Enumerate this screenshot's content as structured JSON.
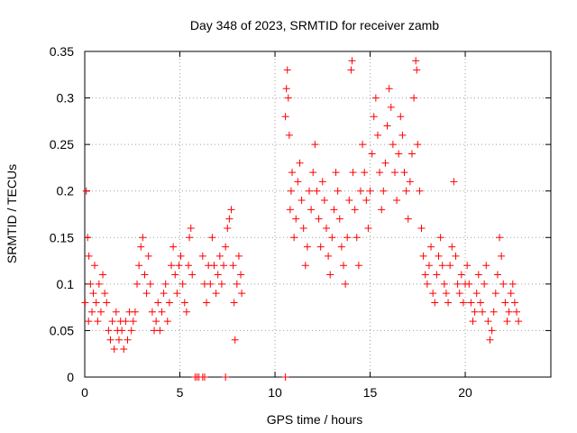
{
  "chart_data": {
    "type": "scatter",
    "title": "Day 348 of 2023, SRMTID for receiver zamb",
    "xlabel": "GPS time / hours",
    "ylabel": "SRMTID / TECUs",
    "xlim": [
      0,
      24.5
    ],
    "ylim": [
      0,
      0.35
    ],
    "x_ticks": [
      0,
      5,
      10,
      15,
      20
    ],
    "x_tick_labels": [
      "0",
      "5",
      "10",
      "15",
      "20"
    ],
    "y_ticks": [
      0,
      0.05,
      0.1,
      0.15,
      0.2,
      0.25,
      0.3,
      0.35
    ],
    "y_tick_labels": [
      "0",
      "0.05",
      "0.1",
      "0.15",
      "0.2",
      "0.25",
      "0.3",
      "0.35"
    ],
    "grid": true,
    "marker": "+",
    "series": [
      {
        "name": "SRMTID",
        "color": "#ff0000",
        "x": [
          0.02,
          0.08,
          0.15,
          0.2,
          0.22,
          0.3,
          0.38,
          0.45,
          0.52,
          0.6,
          0.68,
          0.75,
          0.85,
          0.95,
          1.05,
          1.15,
          1.25,
          1.35,
          1.45,
          1.55,
          1.65,
          1.72,
          1.8,
          1.88,
          1.95,
          2.05,
          2.15,
          2.25,
          2.35,
          2.45,
          2.55,
          2.65,
          2.75,
          2.85,
          2.95,
          3.05,
          3.15,
          3.25,
          3.35,
          3.45,
          3.55,
          3.65,
          3.75,
          3.85,
          3.95,
          4.05,
          4.15,
          4.25,
          4.35,
          4.45,
          4.55,
          4.65,
          4.75,
          4.85,
          4.95,
          5.05,
          5.15,
          5.25,
          5.35,
          5.45,
          5.5,
          5.58,
          5.65,
          6.2,
          6.3,
          6.4,
          6.5,
          6.6,
          6.7,
          6.8,
          6.9,
          7.0,
          7.1,
          7.2,
          7.3,
          7.4,
          7.5,
          7.6,
          7.7,
          7.8,
          7.85,
          7.9,
          8.0,
          8.1,
          8.2,
          8.25,
          10.55,
          10.6,
          10.65,
          10.7,
          10.75,
          10.8,
          10.85,
          10.9,
          11.0,
          11.1,
          11.2,
          11.3,
          11.4,
          11.5,
          11.6,
          11.7,
          11.8,
          11.9,
          12.0,
          12.1,
          12.2,
          12.3,
          12.4,
          12.5,
          12.6,
          12.7,
          12.8,
          12.9,
          13.0,
          13.1,
          13.2,
          13.3,
          13.4,
          13.5,
          13.6,
          13.7,
          13.8,
          13.9,
          14.0,
          14.05,
          14.1,
          14.2,
          14.3,
          14.4,
          14.5,
          14.6,
          14.7,
          14.8,
          14.9,
          15.0,
          15.1,
          15.2,
          15.3,
          15.4,
          15.5,
          15.6,
          15.7,
          15.8,
          15.9,
          16.0,
          16.1,
          16.2,
          16.3,
          16.4,
          16.5,
          16.6,
          16.7,
          16.8,
          16.9,
          17.0,
          17.1,
          17.2,
          17.3,
          17.4,
          17.45,
          17.5,
          17.6,
          17.7,
          17.8,
          17.9,
          18.0,
          18.1,
          18.2,
          18.3,
          18.4,
          18.5,
          18.6,
          18.7,
          18.8,
          18.9,
          19.0,
          19.1,
          19.2,
          19.3,
          19.4,
          19.5,
          19.6,
          19.7,
          19.8,
          19.9,
          20.0,
          20.1,
          20.2,
          20.3,
          20.4,
          20.5,
          20.6,
          20.7,
          20.8,
          20.9,
          21.0,
          21.1,
          21.2,
          21.3,
          21.4,
          21.5,
          21.6,
          21.7,
          21.8,
          21.9,
          22.0,
          22.1,
          22.2,
          22.3,
          22.4,
          22.5,
          22.6,
          22.7,
          22.8,
          5.8,
          5.9,
          6.0,
          6.2,
          6.3,
          7.4,
          10.55
        ],
        "y": [
          0.08,
          0.2,
          0.15,
          0.06,
          0.13,
          0.1,
          0.07,
          0.09,
          0.12,
          0.08,
          0.06,
          0.1,
          0.07,
          0.11,
          0.09,
          0.08,
          0.05,
          0.04,
          0.06,
          0.03,
          0.07,
          0.05,
          0.04,
          0.06,
          0.05,
          0.03,
          0.06,
          0.04,
          0.07,
          0.05,
          0.06,
          0.07,
          0.1,
          0.12,
          0.14,
          0.15,
          0.11,
          0.09,
          0.13,
          0.1,
          0.07,
          0.05,
          0.06,
          0.08,
          0.05,
          0.07,
          0.09,
          0.1,
          0.06,
          0.08,
          0.12,
          0.14,
          0.11,
          0.09,
          0.12,
          0.13,
          0.1,
          0.08,
          0.07,
          0.12,
          0.15,
          0.16,
          0.11,
          0.13,
          0.1,
          0.08,
          0.12,
          0.1,
          0.15,
          0.12,
          0.09,
          0.11,
          0.13,
          0.1,
          0.12,
          0.14,
          0.16,
          0.17,
          0.18,
          0.12,
          0.08,
          0.04,
          0.1,
          0.13,
          0.11,
          0.09,
          0.28,
          0.31,
          0.33,
          0.3,
          0.26,
          0.18,
          0.2,
          0.22,
          0.15,
          0.17,
          0.21,
          0.23,
          0.19,
          0.16,
          0.12,
          0.14,
          0.2,
          0.18,
          0.22,
          0.25,
          0.2,
          0.17,
          0.14,
          0.21,
          0.19,
          0.16,
          0.13,
          0.11,
          0.15,
          0.18,
          0.22,
          0.2,
          0.17,
          0.14,
          0.12,
          0.1,
          0.15,
          0.19,
          0.33,
          0.34,
          0.22,
          0.18,
          0.15,
          0.12,
          0.2,
          0.25,
          0.22,
          0.19,
          0.16,
          0.2,
          0.24,
          0.28,
          0.3,
          0.26,
          0.22,
          0.18,
          0.2,
          0.23,
          0.27,
          0.31,
          0.29,
          0.25,
          0.22,
          0.19,
          0.24,
          0.28,
          0.26,
          0.22,
          0.2,
          0.17,
          0.21,
          0.24,
          0.3,
          0.34,
          0.33,
          0.25,
          0.2,
          0.16,
          0.13,
          0.11,
          0.1,
          0.12,
          0.14,
          0.09,
          0.08,
          0.11,
          0.13,
          0.15,
          0.12,
          0.1,
          0.09,
          0.08,
          0.12,
          0.14,
          0.21,
          0.13,
          0.1,
          0.09,
          0.11,
          0.08,
          0.1,
          0.12,
          0.1,
          0.08,
          0.06,
          0.07,
          0.09,
          0.11,
          0.08,
          0.07,
          0.1,
          0.12,
          0.06,
          0.04,
          0.05,
          0.07,
          0.09,
          0.11,
          0.15,
          0.13,
          0.1,
          0.08,
          0.06,
          0.07,
          0.09,
          0.1,
          0.08,
          0.07,
          0.06,
          0,
          0,
          0,
          0,
          0,
          0,
          0
        ]
      }
    ]
  }
}
